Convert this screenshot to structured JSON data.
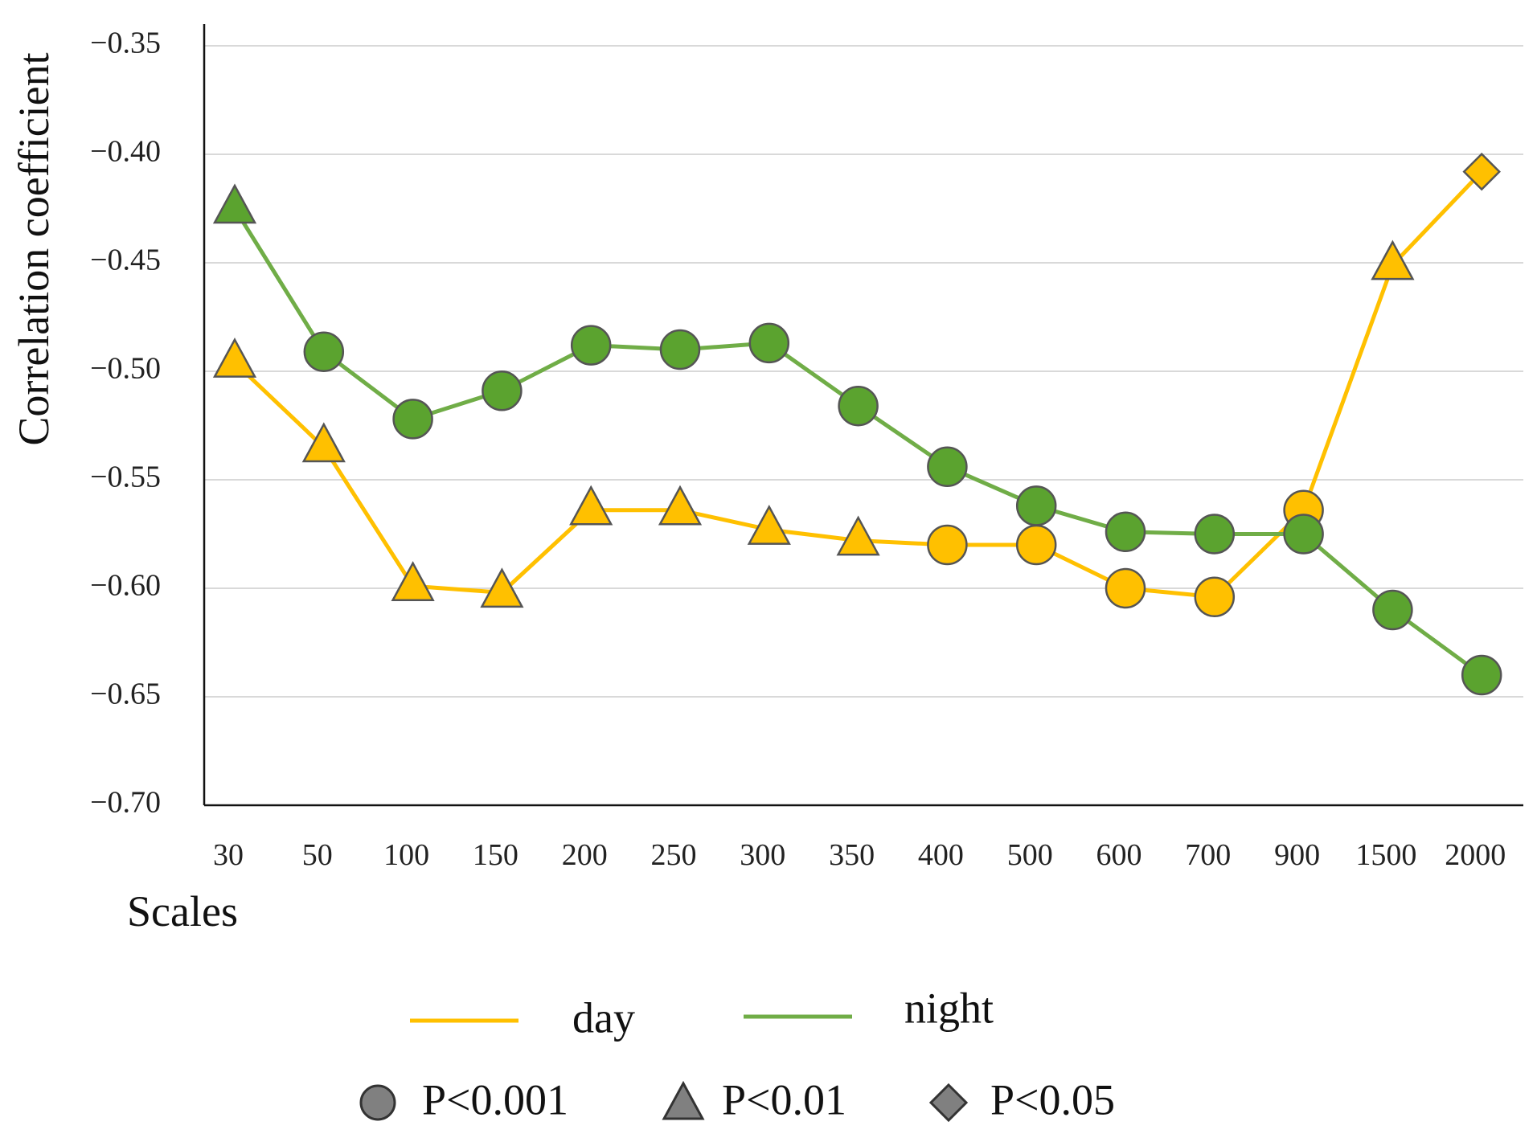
{
  "chart_data": {
    "type": "line",
    "title": "",
    "xlabel": "Scales",
    "ylabel": "Correlation coefficient",
    "categories": [
      "30",
      "50",
      "100",
      "150",
      "200",
      "250",
      "300",
      "350",
      "400",
      "500",
      "600",
      "700",
      "900",
      "1500",
      "2000"
    ],
    "ylim": [
      -0.7,
      -0.34
    ],
    "yticks": [
      -0.35,
      -0.4,
      -0.45,
      -0.5,
      -0.55,
      -0.6,
      -0.65,
      -0.7
    ],
    "ytick_labels": [
      "−0.35",
      "−0.40",
      "−0.45",
      "−0.50",
      "−0.55",
      "−0.60",
      "−0.65",
      "−0.70"
    ],
    "grid": "horizontal",
    "series": [
      {
        "name": "day",
        "color": "#FFC000",
        "marker_color": "#FFC000",
        "values": [
          -0.496,
          -0.535,
          -0.599,
          -0.602,
          -0.564,
          -0.564,
          -0.573,
          -0.578,
          -0.58,
          -0.58,
          -0.6,
          -0.604,
          -0.564,
          -0.451,
          -0.408
        ],
        "markers": [
          "triangle",
          "triangle",
          "triangle",
          "triangle",
          "triangle",
          "triangle",
          "triangle",
          "triangle",
          "circle",
          "circle",
          "circle",
          "circle",
          "circle",
          "triangle",
          "diamond"
        ]
      },
      {
        "name": "night",
        "color": "#70AD47",
        "marker_color": "#5BA32F",
        "values": [
          -0.425,
          -0.491,
          -0.522,
          -0.509,
          -0.488,
          -0.49,
          -0.487,
          -0.516,
          -0.544,
          -0.562,
          -0.574,
          -0.575,
          -0.575,
          -0.61,
          -0.64
        ],
        "markers": [
          "triangle",
          "circle",
          "circle",
          "circle",
          "circle",
          "circle",
          "circle",
          "circle",
          "circle",
          "circle",
          "circle",
          "circle",
          "circle",
          "circle",
          "circle"
        ]
      }
    ],
    "significance_legend": [
      {
        "marker": "circle",
        "label": "P<0.001"
      },
      {
        "marker": "triangle",
        "label": "P<0.01"
      },
      {
        "marker": "diamond",
        "label": "P<0.05"
      }
    ],
    "legend_position": "bottom"
  }
}
